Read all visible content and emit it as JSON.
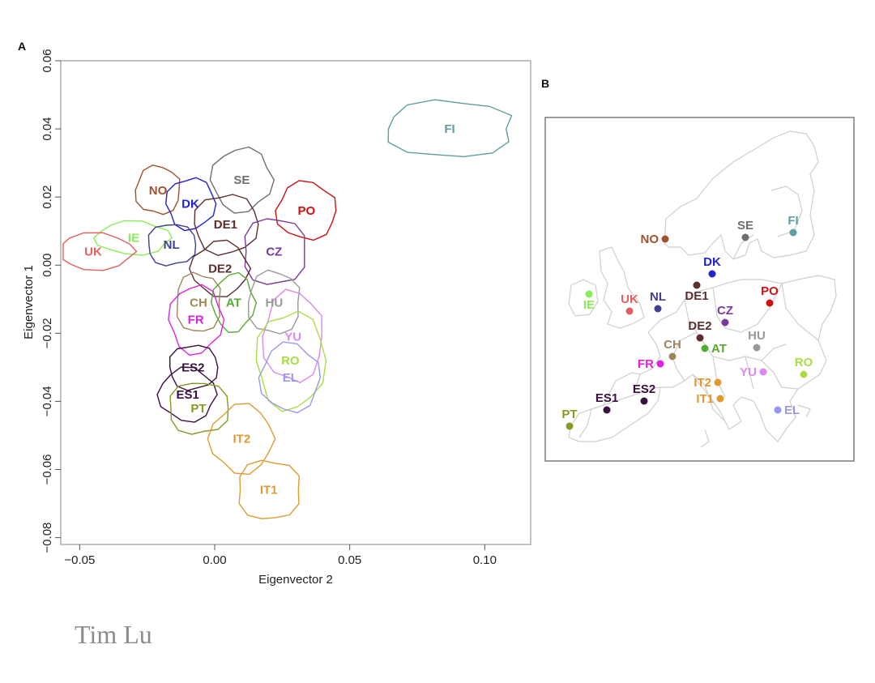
{
  "panel_a_label": "A",
  "panel_b_label": "B",
  "credit": "Tim Lu",
  "chart_data": {
    "type": "scatter",
    "title": "",
    "xlabel": "Eigenvector 2",
    "ylabel": "Eigenvector 1",
    "xlim": [
      -0.057,
      0.117
    ],
    "ylim": [
      -0.082,
      0.06
    ],
    "xticks": [
      "−0.05",
      "0.00",
      "0.05",
      "0.10"
    ],
    "xtick_values": [
      -0.05,
      0.0,
      0.05,
      0.1
    ],
    "yticks": [
      "0.06",
      "0.04",
      "0.02",
      "0.00",
      "−0.02",
      "−0.04",
      "−0.06",
      "−0.08"
    ],
    "ytick_values": [
      0.06,
      0.04,
      0.02,
      0.0,
      -0.02,
      -0.04,
      -0.06,
      -0.08
    ],
    "grid": false,
    "series": [
      {
        "name": "FI",
        "color": "#5f9ea0",
        "x": 0.087,
        "y": 0.04
      },
      {
        "name": "SE",
        "color": "#6e6e6e",
        "x": 0.01,
        "y": 0.025
      },
      {
        "name": "NO",
        "color": "#a0522d",
        "x": -0.021,
        "y": 0.022
      },
      {
        "name": "DK",
        "color": "#2222cc",
        "x": -0.009,
        "y": 0.018
      },
      {
        "name": "PO",
        "color": "#cc1111",
        "x": 0.034,
        "y": 0.016
      },
      {
        "name": "DE1",
        "color": "#5c2e2e",
        "x": 0.004,
        "y": 0.012
      },
      {
        "name": "IE",
        "color": "#88ee55",
        "x": -0.03,
        "y": 0.008
      },
      {
        "name": "NL",
        "color": "#404090",
        "x": -0.016,
        "y": 0.006
      },
      {
        "name": "UK",
        "color": "#e06060",
        "x": -0.045,
        "y": 0.004
      },
      {
        "name": "CZ",
        "color": "#7a3a9a",
        "x": 0.022,
        "y": 0.004
      },
      {
        "name": "DE2",
        "color": "#5c2e2e",
        "x": 0.002,
        "y": -0.001
      },
      {
        "name": "CH",
        "color": "#a0845c",
        "x": -0.006,
        "y": -0.011
      },
      {
        "name": "AT",
        "color": "#55aa33",
        "x": 0.007,
        "y": -0.011
      },
      {
        "name": "HU",
        "color": "#999999",
        "x": 0.022,
        "y": -0.011
      },
      {
        "name": "FR",
        "color": "#dd22dd",
        "x": -0.007,
        "y": -0.016
      },
      {
        "name": "YU",
        "color": "#dd88ee",
        "x": 0.029,
        "y": -0.021
      },
      {
        "name": "RO",
        "color": "#aadd44",
        "x": 0.028,
        "y": -0.028
      },
      {
        "name": "EL",
        "color": "#9999ee",
        "x": 0.028,
        "y": -0.033
      },
      {
        "name": "ES2",
        "color": "#3a1040",
        "x": -0.008,
        "y": -0.03
      },
      {
        "name": "ES1",
        "color": "#3a1040",
        "x": -0.01,
        "y": -0.038
      },
      {
        "name": "PT",
        "color": "#889922",
        "x": -0.006,
        "y": -0.042
      },
      {
        "name": "IT2",
        "color": "#e09a30",
        "x": 0.01,
        "y": -0.051
      },
      {
        "name": "IT1",
        "color": "#e09a30",
        "x": 0.02,
        "y": -0.066
      }
    ]
  },
  "map": {
    "points": [
      {
        "name": "NO",
        "color": "#a0522d"
      },
      {
        "name": "SE",
        "color": "#6e6e6e"
      },
      {
        "name": "FI",
        "color": "#5f9ea0"
      },
      {
        "name": "DK",
        "color": "#2222cc"
      },
      {
        "name": "DE1",
        "color": "#5c2e2e"
      },
      {
        "name": "PO",
        "color": "#cc1111"
      },
      {
        "name": "IE",
        "color": "#88ee55"
      },
      {
        "name": "UK",
        "color": "#e06060"
      },
      {
        "name": "NL",
        "color": "#404090"
      },
      {
        "name": "CZ",
        "color": "#7a3a9a"
      },
      {
        "name": "DE2",
        "color": "#5c2e2e"
      },
      {
        "name": "HU",
        "color": "#999999"
      },
      {
        "name": "CH",
        "color": "#a0845c"
      },
      {
        "name": "AT",
        "color": "#55aa33"
      },
      {
        "name": "FR",
        "color": "#dd22dd"
      },
      {
        "name": "RO",
        "color": "#aadd44"
      },
      {
        "name": "YU",
        "color": "#dd88ee"
      },
      {
        "name": "IT2",
        "color": "#e09a30"
      },
      {
        "name": "IT1",
        "color": "#e09a30"
      },
      {
        "name": "ES2",
        "color": "#3a1040"
      },
      {
        "name": "ES1",
        "color": "#3a1040"
      },
      {
        "name": "EL",
        "color": "#9999ee"
      },
      {
        "name": "PT",
        "color": "#889922"
      }
    ]
  }
}
